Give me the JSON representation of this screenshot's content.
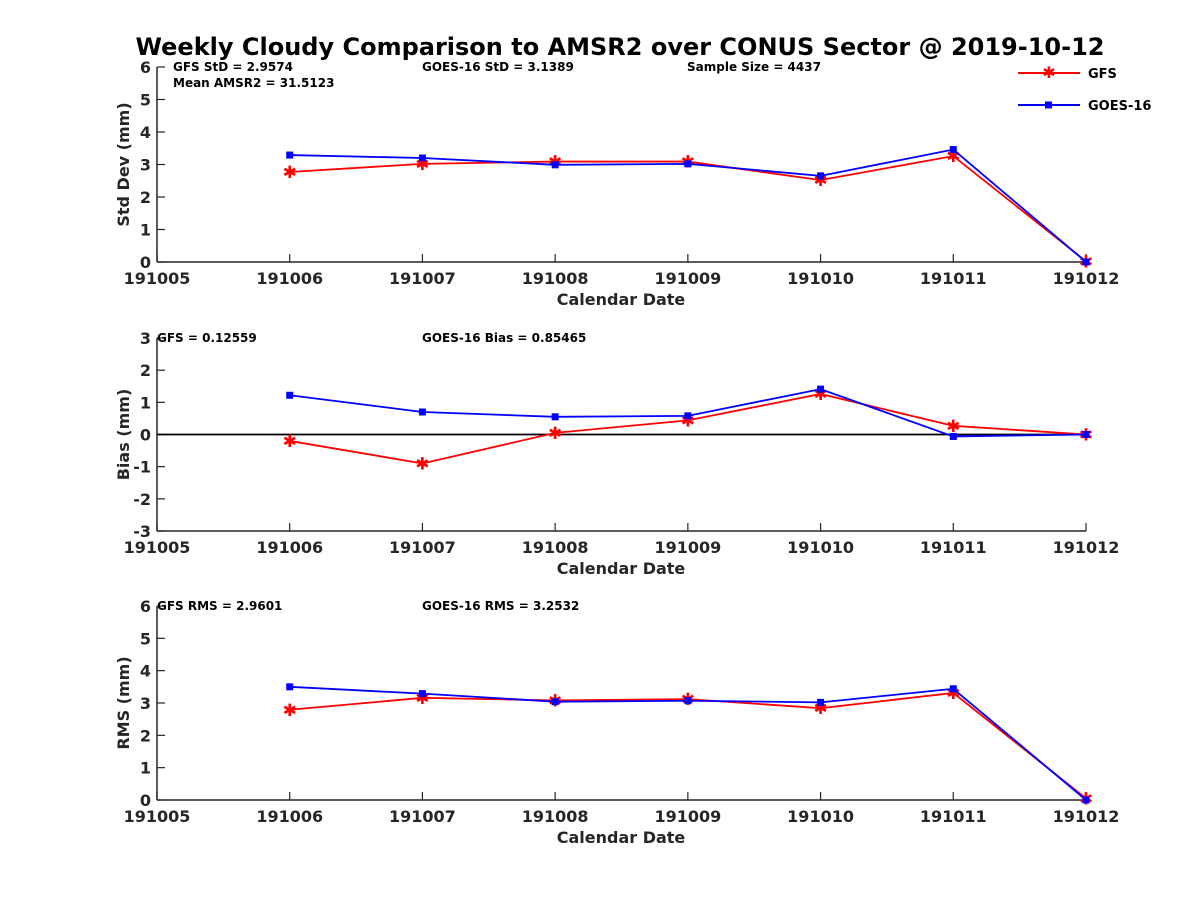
{
  "title": "Weekly Cloudy Comparison to AMSR2 over CONUS Sector @ 2019-10-12",
  "legend": {
    "placement": "top-right",
    "entries": [
      {
        "label": "GFS",
        "color": "#ff0000",
        "marker": "asterisk"
      },
      {
        "label": "GOES-16",
        "color": "#0000ff",
        "marker": "square"
      }
    ]
  },
  "chart_data": [
    {
      "type": "line",
      "ylabel": "Std Dev (mm)",
      "xlabel": "Calendar Date",
      "x_ticks": [
        "191005",
        "191006",
        "191007",
        "191008",
        "191009",
        "191010",
        "191011",
        "191012"
      ],
      "ylim": [
        0,
        6
      ],
      "y_ticks": [
        "0",
        "1",
        "2",
        "3",
        "4",
        "5",
        "6"
      ],
      "zero_line": false,
      "annotations": [
        "GFS StD = 2.9574",
        "Mean AMSR2 = 31.5123",
        "GOES-16 StD = 3.1389",
        "Sample Size = 4437"
      ],
      "series": [
        {
          "name": "GFS",
          "color": "#ff0000",
          "marker": "asterisk",
          "x": [
            "191006",
            "191007",
            "191008",
            "191009",
            "191010",
            "191011",
            "191012"
          ],
          "values": [
            2.77,
            3.02,
            3.09,
            3.09,
            2.52,
            3.26,
            0.02
          ]
        },
        {
          "name": "GOES-16",
          "color": "#0000ff",
          "marker": "square",
          "x": [
            "191006",
            "191007",
            "191008",
            "191009",
            "191010",
            "191011",
            "191012"
          ],
          "values": [
            3.29,
            3.2,
            2.99,
            3.02,
            2.65,
            3.46,
            0.0
          ]
        }
      ]
    },
    {
      "type": "line",
      "ylabel": "Bias (mm)",
      "xlabel": "Calendar Date",
      "x_ticks": [
        "191005",
        "191006",
        "191007",
        "191008",
        "191009",
        "191010",
        "191011",
        "191012"
      ],
      "ylim": [
        -3,
        3
      ],
      "y_ticks": [
        "-3",
        "-2",
        "-1",
        "0",
        "1",
        "2",
        "3"
      ],
      "zero_line": true,
      "annotations": [
        "GFS = 0.12559",
        "GOES-16 Bias  = 0.85465"
      ],
      "series": [
        {
          "name": "GFS",
          "color": "#ff0000",
          "marker": "asterisk",
          "x": [
            "191006",
            "191007",
            "191008",
            "191009",
            "191010",
            "191011",
            "191012"
          ],
          "values": [
            -0.2,
            -0.9,
            0.05,
            0.44,
            1.26,
            0.27,
            0.0
          ]
        },
        {
          "name": "GOES-16",
          "color": "#0000ff",
          "marker": "square",
          "x": [
            "191006",
            "191007",
            "191008",
            "191009",
            "191010",
            "191011",
            "191012"
          ],
          "values": [
            1.22,
            0.7,
            0.55,
            0.58,
            1.41,
            -0.06,
            0.0
          ]
        }
      ]
    },
    {
      "type": "line",
      "ylabel": "RMS (mm)",
      "xlabel": "Calendar Date",
      "x_ticks": [
        "191005",
        "191006",
        "191007",
        "191008",
        "191009",
        "191010",
        "191011",
        "191012"
      ],
      "ylim": [
        0,
        6
      ],
      "y_ticks": [
        "0",
        "1",
        "2",
        "3",
        "4",
        "5",
        "6"
      ],
      "zero_line": false,
      "annotations": [
        "GFS RMS = 2.9601",
        "GOES-16 RMS = 3.2532"
      ],
      "series": [
        {
          "name": "GFS",
          "color": "#ff0000",
          "marker": "asterisk",
          "x": [
            "191006",
            "191007",
            "191008",
            "191009",
            "191010",
            "191011",
            "191012"
          ],
          "values": [
            2.79,
            3.16,
            3.08,
            3.12,
            2.84,
            3.31,
            0.05
          ]
        },
        {
          "name": "GOES-16",
          "color": "#0000ff",
          "marker": "square",
          "x": [
            "191006",
            "191007",
            "191008",
            "191009",
            "191010",
            "191011",
            "191012"
          ],
          "values": [
            3.5,
            3.29,
            3.04,
            3.07,
            3.02,
            3.44,
            0.0
          ]
        }
      ]
    }
  ]
}
